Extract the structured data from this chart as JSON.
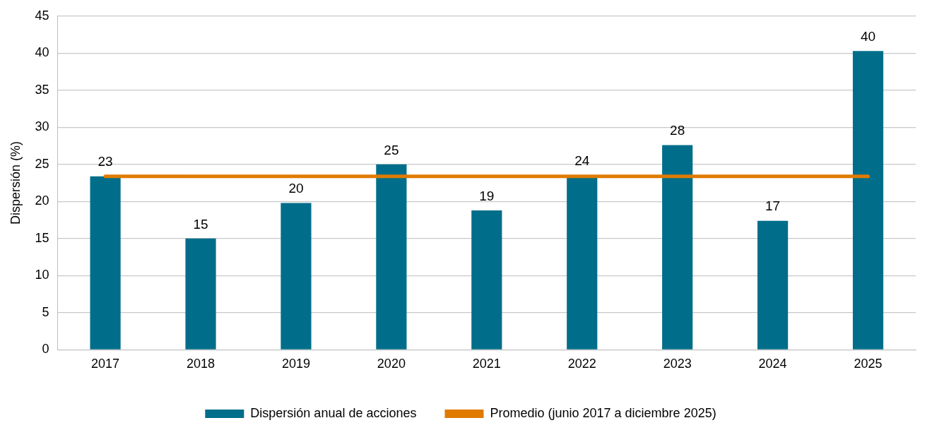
{
  "chart_data": {
    "type": "bar",
    "ylabel": "Dispersión (%)",
    "categories": [
      "2017",
      "2018",
      "2019",
      "2020",
      "2021",
      "2022",
      "2023",
      "2024",
      "2025"
    ],
    "series": [
      {
        "name": "Dispersión anual de acciones",
        "color": "#006e8a",
        "values": [
          23.4,
          15.0,
          19.8,
          25.0,
          18.8,
          23.5,
          27.6,
          17.4,
          40.3
        ],
        "value_labels": [
          "23",
          "15",
          "20",
          "25",
          "19",
          "24",
          "28",
          "17",
          "40"
        ]
      },
      {
        "name": "Promedio (junio 2017 a diciembre 2025)",
        "type": "line",
        "color": "#e07b00",
        "values": [
          23.4,
          23.4,
          23.4,
          23.4,
          23.4,
          23.4,
          23.4,
          23.4,
          23.4
        ]
      }
    ],
    "ylim": [
      0,
      45
    ],
    "yticks": [
      0,
      5,
      10,
      15,
      20,
      25,
      30,
      35,
      40,
      45
    ],
    "grid": "y",
    "legend": "bottom",
    "marker": "none"
  }
}
